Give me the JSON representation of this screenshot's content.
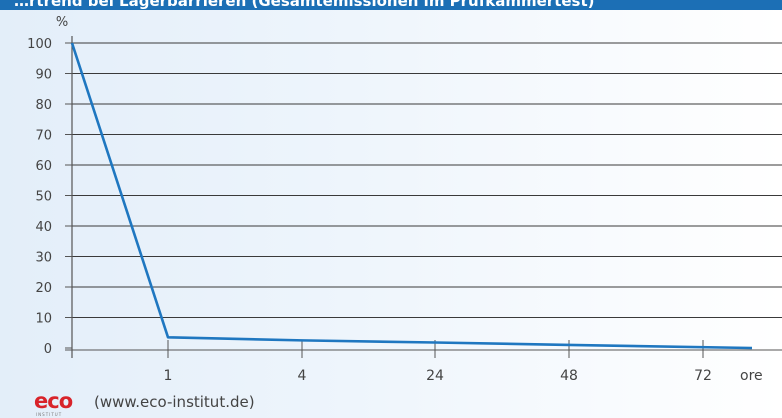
{
  "header": {
    "title": "…rtrend bei Lagerbarrieren (Gesamtemissionen im Prüfkammertest)"
  },
  "chart_data": {
    "type": "line",
    "title": "",
    "ylabel": "%",
    "xlabel": "ore",
    "ylim": [
      0,
      100
    ],
    "yticks": [
      0,
      10,
      20,
      30,
      40,
      50,
      60,
      70,
      80,
      90,
      100
    ],
    "yticklabels": [
      "0",
      "10",
      "20",
      "30",
      "40",
      "50",
      "60",
      "70",
      "80",
      "90",
      "100"
    ],
    "x": [
      0,
      1,
      4,
      24,
      48,
      72
    ],
    "xticklabels": [
      "1",
      "4",
      "24",
      "48",
      "72"
    ],
    "series": [
      {
        "values": [
          100,
          3.5,
          2.5,
          1.8,
          1.0,
          0
        ]
      }
    ],
    "grid": true,
    "line_color": "#1f77c0"
  },
  "footer": {
    "logo_text": "eco",
    "logo_subtext": "INSTITUT",
    "credit": "(www.eco-institut.de)"
  }
}
